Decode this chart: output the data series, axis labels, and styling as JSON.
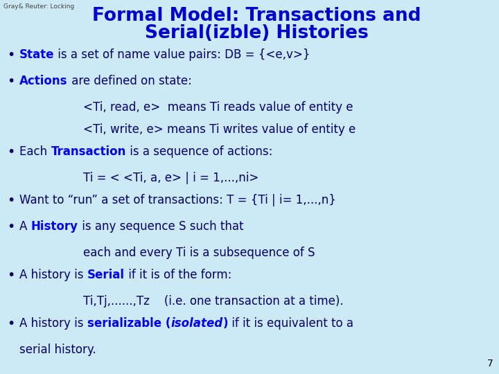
{
  "background_color": "#cce9f5",
  "title_line1": "Formal Model: Transactions and",
  "title_line2": "Serial(izble) Histories",
  "title_color": "#0000cc",
  "title_fontsize": 19,
  "watermark": "Gray& Reuter: Locking",
  "watermark_color": "#444444",
  "watermark_fontsize": 6.5,
  "page_number": "7",
  "body_fontsize": 12,
  "body_color": "#000066",
  "highlight_color": "#0000ee",
  "bullet_items": [
    {
      "parts": [
        {
          "text": "State",
          "bold": true,
          "underline": false,
          "color": "#0000ee"
        },
        {
          "text": " is a set of name value pairs: DB = {<e,v>}",
          "bold": false,
          "color": "#000066"
        }
      ],
      "indent": 0
    },
    {
      "parts": [
        {
          "text": "Actions",
          "bold": true,
          "color": "#0000ee"
        },
        {
          "text": " are defined on state:",
          "bold": false,
          "color": "#000066"
        }
      ],
      "indent": 0
    },
    {
      "parts": [
        {
          "text": "<Ti, read, e>  means Ti reads value of entity e",
          "bold": false,
          "color": "#000066"
        }
      ],
      "indent": 1
    },
    {
      "parts": [
        {
          "text": "<Ti, write, e> means Ti writes value of entity e",
          "bold": false,
          "color": "#000066"
        }
      ],
      "indent": 1
    },
    {
      "parts": [
        {
          "text": "Each ",
          "bold": false,
          "color": "#000066"
        },
        {
          "text": "Transaction",
          "bold": true,
          "color": "#0000ee"
        },
        {
          "text": " is a sequence of actions:",
          "bold": false,
          "color": "#000066"
        }
      ],
      "indent": 0
    },
    {
      "parts": [
        {
          "text": "Ti = < <Ti, a, e> | i = 1,...,ni>",
          "bold": false,
          "color": "#000066"
        }
      ],
      "indent": 1
    },
    {
      "parts": [
        {
          "text": "Want to “run” a set of transactions: T = {Ti | i= 1,...,n}",
          "bold": false,
          "color": "#000066"
        }
      ],
      "indent": 0
    },
    {
      "parts": [
        {
          "text": "A ",
          "bold": false,
          "color": "#000066"
        },
        {
          "text": "History",
          "bold": true,
          "color": "#0000ee"
        },
        {
          "text": " is any sequence S such that",
          "bold": false,
          "color": "#000066"
        }
      ],
      "indent": 0
    },
    {
      "parts": [
        {
          "text": "each and every Ti is a subsequence of S",
          "bold": false,
          "color": "#000066"
        }
      ],
      "indent": 1
    },
    {
      "parts": [
        {
          "text": "A history is ",
          "bold": false,
          "color": "#000066"
        },
        {
          "text": "Serial",
          "bold": true,
          "color": "#0000ee"
        },
        {
          "text": " if it is of the form:",
          "bold": false,
          "color": "#000066"
        }
      ],
      "indent": 0
    },
    {
      "parts": [
        {
          "text": "Ti,Tj,......,Tz    (i.e. one transaction at a time).",
          "bold": false,
          "color": "#000066"
        }
      ],
      "indent": 1
    },
    {
      "parts": [
        {
          "text": "A history is ",
          "bold": false,
          "color": "#000066"
        },
        {
          "text": "serializable (",
          "bold": true,
          "color": "#0000ee"
        },
        {
          "text": "isolated",
          "bold": true,
          "italic": true,
          "color": "#0000ee"
        },
        {
          "text": ")",
          "bold": true,
          "color": "#0000ee"
        },
        {
          "text": " if it is equivalent to a",
          "bold": false,
          "color": "#000066"
        }
      ],
      "indent": 0
    },
    {
      "parts": [
        {
          "text": "serial history.",
          "bold": false,
          "color": "#000066"
        }
      ],
      "indent": 0,
      "no_bullet": true
    }
  ]
}
